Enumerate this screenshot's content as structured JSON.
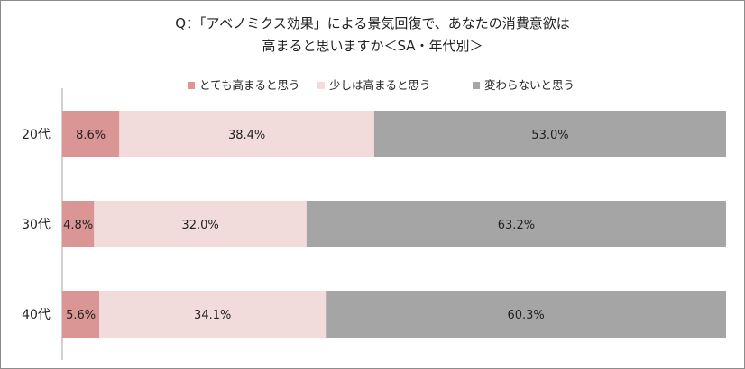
{
  "chart_data": {
    "type": "bar",
    "stacked": true,
    "orientation": "horizontal",
    "percent_stacked": true,
    "title_lines": [
      "Q：「アベノミクス効果」による景気回復で、あなたの消費意欲は",
      "高まると思いますか＜SA・年代別＞"
    ],
    "categories": [
      "20代",
      "30代",
      "40代"
    ],
    "series": [
      {
        "name": "とても高まると思う",
        "color": "#d99694",
        "values": [
          8.6,
          4.8,
          5.6
        ]
      },
      {
        "name": "少しは高まると思う",
        "color": "#f2dcdb",
        "values": [
          38.4,
          32.0,
          34.1
        ]
      },
      {
        "name": "変わらないと思う",
        "color": "#a5a5a5",
        "values": [
          53.0,
          63.2,
          60.3
        ]
      }
    ],
    "data_labels": [
      [
        "8.6%",
        "38.4%",
        "53.0%"
      ],
      [
        "4.8%",
        "32.0%",
        "63.2%"
      ],
      [
        "5.6%",
        "34.1%",
        "60.3%"
      ]
    ],
    "xlim": [
      0,
      100
    ],
    "grid": false,
    "legend_position": "top"
  }
}
